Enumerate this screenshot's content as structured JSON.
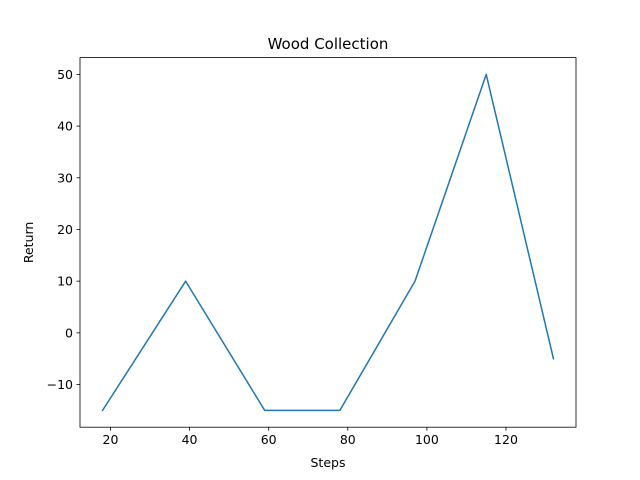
{
  "chart_data": {
    "type": "line",
    "title": "Wood Collection",
    "xlabel": "Steps",
    "ylabel": "Return",
    "xlim": [
      12.3,
      137.7
    ],
    "ylim": [
      -18.25,
      53.25
    ],
    "x_ticks": [
      20,
      40,
      60,
      80,
      100,
      120
    ],
    "y_ticks": [
      -10,
      0,
      10,
      20,
      30,
      40,
      50
    ],
    "x_tick_labels": [
      "20",
      "40",
      "60",
      "80",
      "100",
      "120"
    ],
    "y_tick_labels": [
      "−10",
      "0",
      "10",
      "20",
      "30",
      "40",
      "50"
    ],
    "grid": false,
    "legend": "none",
    "series": [
      {
        "color": "#1f77b4",
        "x": [
          18,
          39,
          59,
          78,
          97,
          115,
          132
        ],
        "y": [
          -15,
          10,
          -15,
          -15,
          10,
          50,
          -5
        ]
      }
    ]
  }
}
